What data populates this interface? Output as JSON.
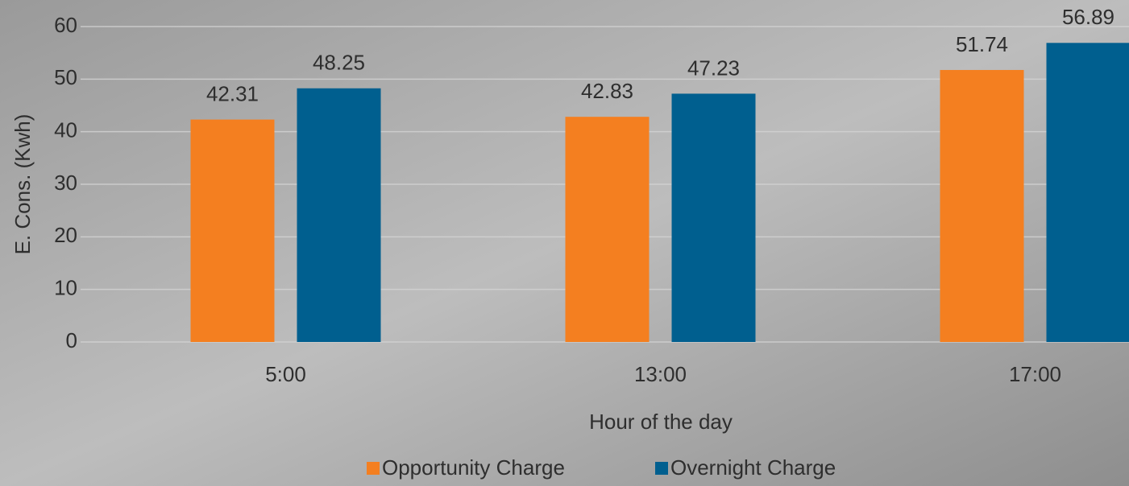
{
  "chart_data": {
    "type": "bar",
    "x_label": "Hour of the day",
    "y_label": "E. Cons. (Kwh)",
    "categories": [
      "5:00",
      "13:00",
      "17:00"
    ],
    "series": [
      {
        "name": "Opportunity Charge",
        "color": "#f47f20",
        "values": [
          42.31,
          42.83,
          51.74
        ]
      },
      {
        "name": "Overnight Charge",
        "color": "#005f8f",
        "values": [
          48.25,
          47.23,
          56.89
        ]
      }
    ],
    "ylim": [
      0,
      60
    ],
    "yticks": [
      0,
      10,
      20,
      30,
      40,
      50,
      60
    ],
    "grid": true,
    "legend": "bottom"
  }
}
